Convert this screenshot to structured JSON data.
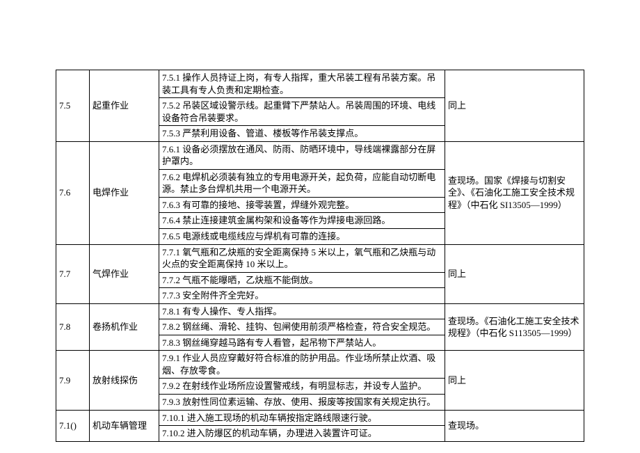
{
  "rows": [
    {
      "num": "7.5",
      "cat": "起重作业",
      "details": [
        "7.5.1 操作人员持证上岗，有专人指挥，重大吊装工程有吊装方案。吊装工具有专人负责和定期检查。",
        "7.5.2 吊装区域设警示线。起重臂下严禁站人。吊装周围的环境、电线设备符合吊装要求。",
        "7.5.3 严禁利用设备、管道、楼板等作吊装支撑点。"
      ],
      "ref": "同上"
    },
    {
      "num": "7.6",
      "cat": "电焊作业",
      "details": [
        "7.6.1 设备必须摆放在通风、防雨、防晒环境中，导线端裸露部分在屏护罩内。",
        "7.6.2 电焊机必须装有独立的专用电源开关，起负荷，应能自动切断电源。禁止多台焊机共用一个电源开关。",
        "7.6.3 有可靠的接地、接零装置，焊缝外观完整。",
        "7.6.4 禁止连接建筑金属构架和设备等作为焊接电源回路。",
        "7.6.5 电源线或电缆线应与焊机有可靠的连接。"
      ],
      "ref": "查现场。国家《焊接与切割安全》、《石油化工施工安全技术规程》（中石化 SI13505—1999）"
    },
    {
      "num": "7.7",
      "cat": "气焊作业",
      "details": [
        "7.7.1 氧气瓶和乙炔瓶的安全距离保持 5 米以上，氧气瓶和乙炔瓶与动火点的安全距离保持 10 米以上。",
        "7.7.2 气瓶不能曝晒，乙炔瓶不能倒放。",
        "7.7.3 安全附件齐全完好。"
      ],
      "ref": "同上"
    },
    {
      "num": "7.8",
      "cat": "卷扬机作业",
      "details": [
        "7.8.1 有专人操作、专人指挥。",
        "7.8.2 钢丝绳、滑轮、挂钩、包闸使用前须严格检查，符合安全规范。",
        "7.8.3 钢丝绳穿越马路有专人看管，起吊物下严禁站人。"
      ],
      "ref": "查现场。《石油化工施工安全技术规程》（中石化 S113505—1999）"
    },
    {
      "num": "7.9",
      "cat": "放射线探伤",
      "details": [
        "7.9.1 作业人员应穿戴好符合标准的防护用品。作业场所禁止炊酒、吸烟、存放零食。",
        "7.9.2 在射线作业场所应设置警戒线，有明显标志，并设专人监护。",
        "7.9.3 放射性同位素运输、存放、使用、报废等按国家有关规定执行。"
      ],
      "ref": "同上"
    },
    {
      "num": "7.1()",
      "cat": "机动车辆管理",
      "details": [
        "7.10.1 进入施工现场的机动车辆按指定路线限速行驶。",
        "7.10.2 进入防爆区的机动车辆，办理进入装置许可证。"
      ],
      "ref": "查现场。"
    }
  ],
  "style": {
    "font_size": 13,
    "border_color": "#000000",
    "background_color": "#ffffff",
    "text_color": "#000000"
  }
}
